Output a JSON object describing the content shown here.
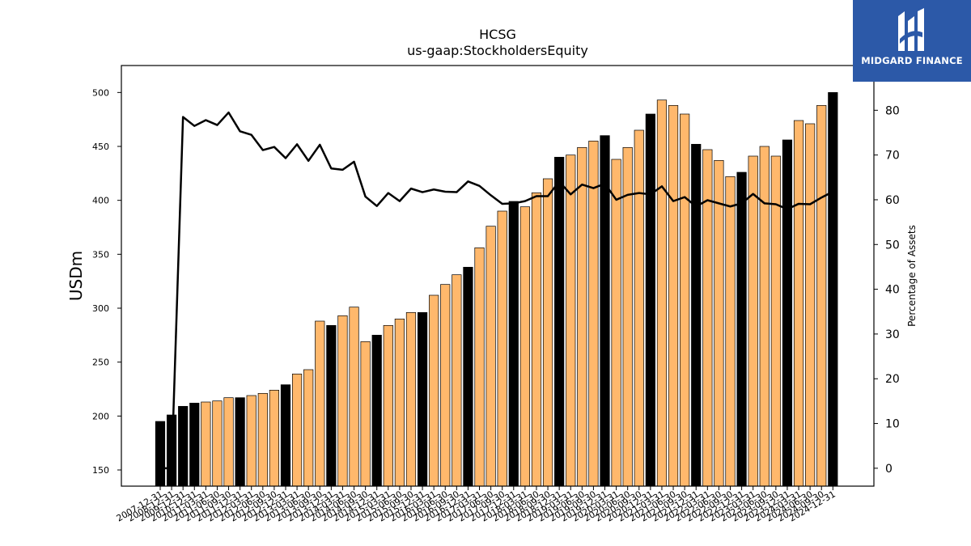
{
  "chart_data": {
    "type": "bar",
    "title": "HCSG",
    "subtitle": "us-gaap:StockholdersEquity",
    "ylabel": "USDm",
    "y2label": "Percentage of Assets",
    "ylim": [
      135,
      525
    ],
    "y2lim": [
      -4,
      90
    ],
    "yticks": [
      150,
      200,
      250,
      300,
      350,
      400,
      450,
      500
    ],
    "y2ticks": [
      0,
      10,
      20,
      30,
      40,
      50,
      60,
      70,
      80
    ],
    "colors": {
      "annual": "#000000",
      "quarterly": "#ffb86c",
      "line": "#000000"
    },
    "categories": [
      "2007-12-31",
      "2008-12-31",
      "2009-12-31",
      "2010-12-31",
      "2011-03-31",
      "2011-06-30",
      "2011-09-30",
      "2011-12-31",
      "2012-03-31",
      "2012-06-30",
      "2012-09-30",
      "2012-12-31",
      "2013-03-31",
      "2013-06-30",
      "2013-09-30",
      "2013-12-31",
      "2014-03-31",
      "2014-06-30",
      "2014-09-30",
      "2014-12-31",
      "2015-03-31",
      "2015-06-30",
      "2015-09-30",
      "2015-12-31",
      "2016-03-31",
      "2016-06-30",
      "2016-09-30",
      "2016-12-31",
      "2017-03-31",
      "2017-06-30",
      "2017-09-30",
      "2017-12-31",
      "2018-03-31",
      "2018-06-30",
      "2018-09-30",
      "2018-12-31",
      "2019-03-31",
      "2019-06-30",
      "2019-09-30",
      "2019-12-31",
      "2020-03-31",
      "2020-06-30",
      "2020-09-30",
      "2020-12-31",
      "2021-03-31",
      "2021-06-30",
      "2021-09-30",
      "2021-12-31",
      "2022-03-31",
      "2022-06-30",
      "2022-09-30",
      "2022-12-31",
      "2023-03-31",
      "2023-06-30",
      "2023-09-30",
      "2023-12-31",
      "2024-03-31",
      "2024-06-30",
      "2024-09-30",
      "2024-12-31"
    ],
    "annual_flags": [
      1,
      1,
      1,
      1,
      0,
      0,
      0,
      1,
      0,
      0,
      0,
      1,
      0,
      0,
      0,
      1,
      0,
      0,
      0,
      1,
      0,
      0,
      0,
      1,
      0,
      0,
      0,
      1,
      0,
      0,
      0,
      1,
      0,
      0,
      0,
      1,
      0,
      0,
      0,
      1,
      0,
      0,
      0,
      1,
      0,
      0,
      0,
      1,
      0,
      0,
      0,
      1,
      0,
      0,
      0,
      1,
      0,
      0,
      0,
      1
    ],
    "series": [
      {
        "values": [
          195,
          201,
          209,
          212,
          213,
          214,
          217,
          217,
          219,
          221,
          224,
          229,
          239,
          243,
          288,
          284,
          293,
          301,
          269,
          275,
          284,
          290,
          296,
          296,
          312,
          322,
          331,
          338,
          356,
          376,
          390,
          399,
          394,
          407,
          420,
          440,
          442,
          449,
          455,
          460,
          438,
          449,
          465,
          480,
          493,
          488,
          480,
          452,
          447,
          437,
          422,
          426,
          441,
          450,
          441,
          456,
          474,
          471,
          488,
          500
        ]
      },
      {
        "axis": "right",
        "values": [
          0,
          0,
          78.5,
          76.5,
          77.8,
          76.7,
          79.5,
          75.3,
          74.5,
          71.1,
          71.8,
          69.3,
          72.4,
          68.7,
          72.3,
          67,
          66.7,
          68.5,
          60.7,
          58.6,
          61.5,
          59.7,
          62.5,
          61.7,
          62.3,
          61.8,
          61.7,
          64.1,
          63.1,
          61,
          59.1,
          59.2,
          59.7,
          60.8,
          60.8,
          64.1,
          61.2,
          63.4,
          62.6,
          63.6,
          60,
          61.1,
          61.5,
          61.2,
          63,
          59.7,
          60.6,
          58.5,
          59.9,
          59.2,
          58.5,
          59.2,
          61.3,
          59.2,
          59,
          57.9,
          59.1,
          59,
          60.5,
          61.8
        ]
      }
    ]
  },
  "logo": {
    "text": "MIDGARD FINANCE"
  }
}
